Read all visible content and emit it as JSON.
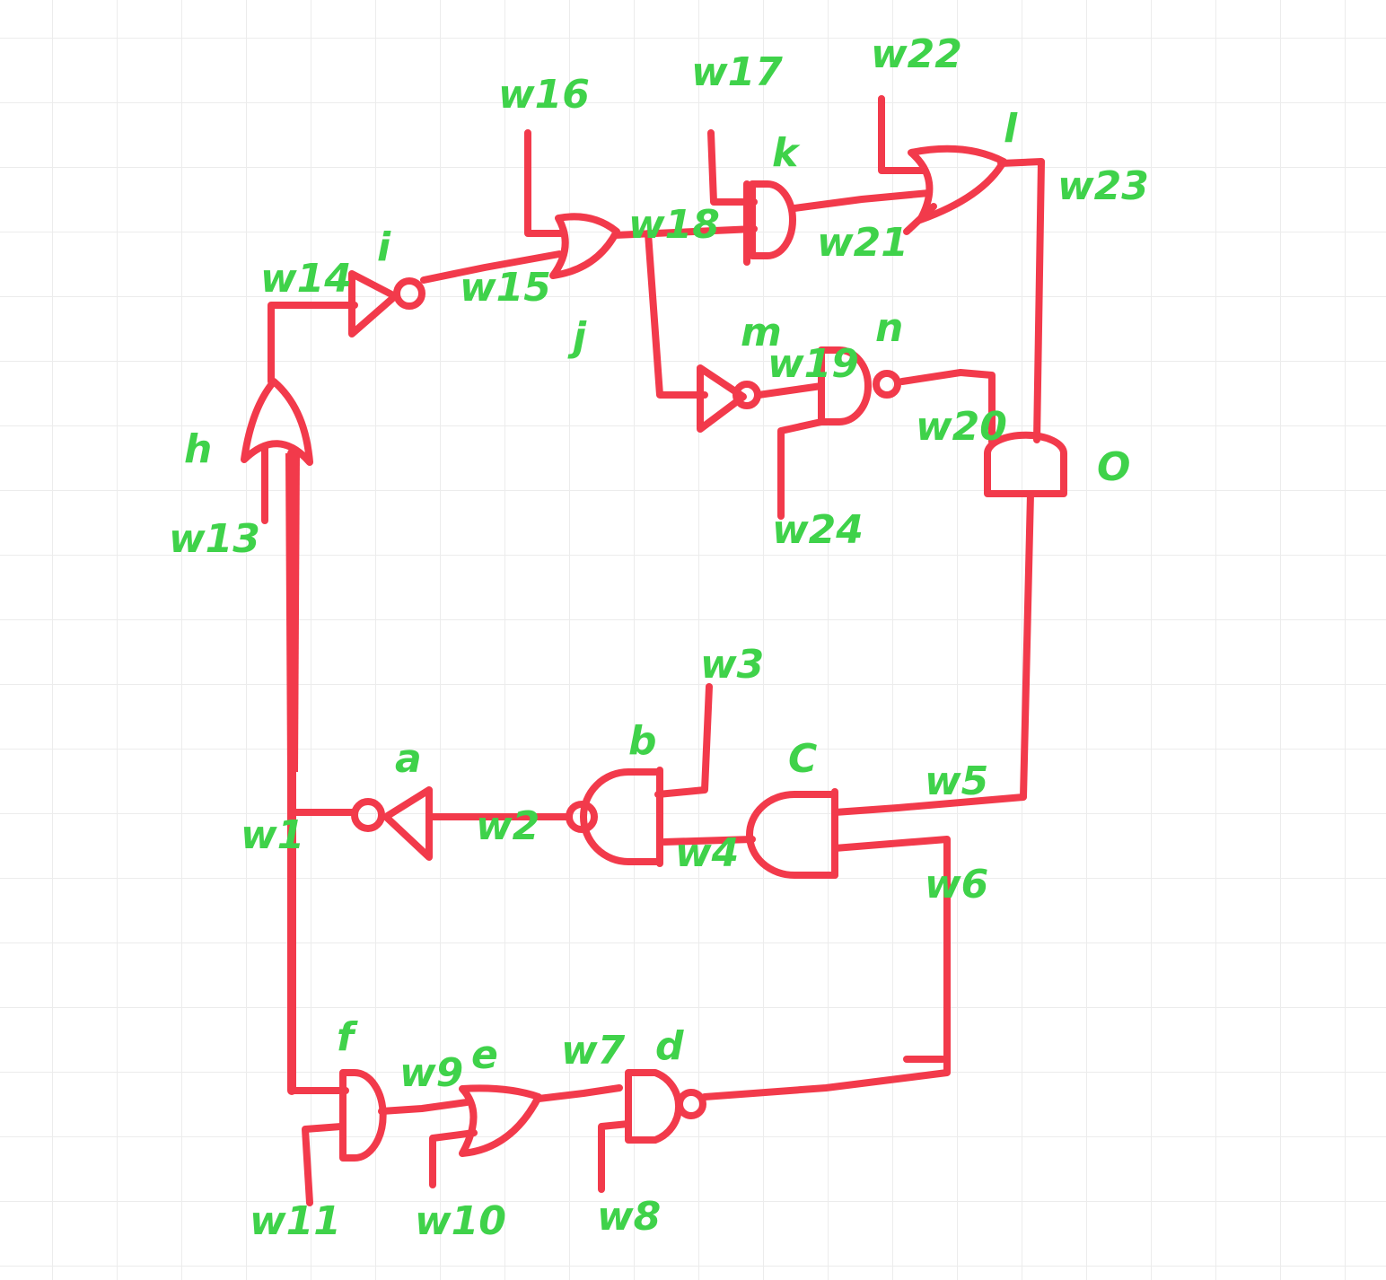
{
  "theme": {
    "wire_color": "#f23a4b",
    "label_color": "#3fd24a",
    "grid_color": "#ececec"
  },
  "gates": [
    {
      "id": "a",
      "label": "a",
      "type": "NOT"
    },
    {
      "id": "b",
      "label": "b",
      "type": "NAND"
    },
    {
      "id": "c",
      "label": "C",
      "type": "AND"
    },
    {
      "id": "d",
      "label": "d",
      "type": "NAND"
    },
    {
      "id": "e",
      "label": "e",
      "type": "OR"
    },
    {
      "id": "f",
      "label": "f",
      "type": "AND"
    },
    {
      "id": "h",
      "label": "h",
      "type": "OR"
    },
    {
      "id": "i",
      "label": "i",
      "type": "NOT"
    },
    {
      "id": "j",
      "label": "j",
      "type": "OR"
    },
    {
      "id": "k",
      "label": "k",
      "type": "AND"
    },
    {
      "id": "l",
      "label": "l",
      "type": "OR"
    },
    {
      "id": "m",
      "label": "m",
      "type": "NOT"
    },
    {
      "id": "n",
      "label": "n",
      "type": "NAND"
    },
    {
      "id": "o",
      "label": "O",
      "type": "AND"
    }
  ],
  "wires": [
    "w1",
    "w2",
    "w3",
    "w4",
    "w5",
    "w6",
    "w7",
    "w8",
    "w9",
    "w10",
    "w11",
    "w13",
    "w14",
    "w15",
    "w16",
    "w17",
    "w18",
    "w19",
    "w20",
    "w21",
    "w22",
    "w23",
    "w24"
  ],
  "labels": {
    "w1": "w1",
    "w2": "w2",
    "w3": "w3",
    "w4": "w4",
    "w5": "w5",
    "w6": "w6",
    "w7": "w7",
    "w8": "w8",
    "w9": "w9",
    "w10": "w10",
    "w11": "w11",
    "w13": "w13",
    "w14": "w14",
    "w15": "w15",
    "w16": "w16",
    "w17": "w17",
    "w18": "w18",
    "w19": "w19",
    "w20": "w20",
    "w21": "w21",
    "w22": "w22",
    "w23": "w23",
    "w24": "w24"
  }
}
